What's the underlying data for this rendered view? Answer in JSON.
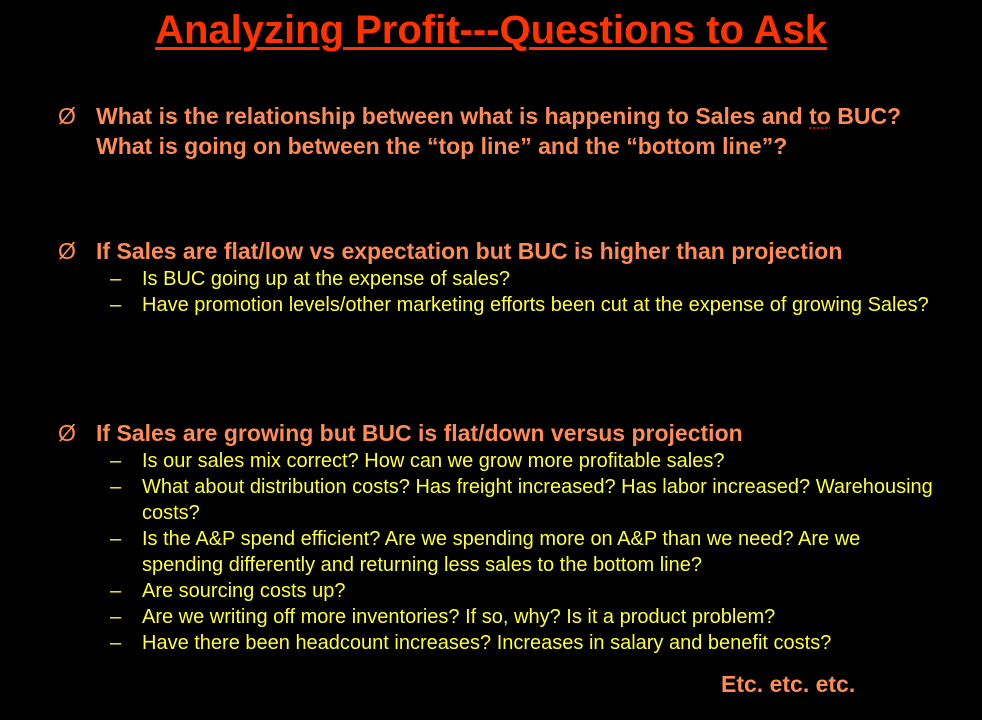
{
  "colors": {
    "background": "#000000",
    "title": "#ff3300",
    "bullet_text": "#ff8c55",
    "sub_text": "#ffff33"
  },
  "title": "Analyzing Profit---Questions to Ask",
  "bullets": [
    {
      "mark": "Ø",
      "text_before": "What is the relationship between what is happening to Sales and ",
      "text_flagged": "to",
      "text_after": " BUC?  What is going on between the “top line” and the “bottom line”?",
      "subitems": []
    },
    {
      "mark": "Ø",
      "text": "If Sales are flat/low vs expectation but BUC is higher than projection",
      "subitems": [
        "Is BUC going up at the expense of sales?",
        "Have promotion levels/other marketing efforts been cut at the expense of growing Sales?"
      ]
    },
    {
      "mark": "Ø",
      "text": "If Sales are growing but BUC is flat/down versus projection",
      "subitems": [
        "Is our sales mix correct?  How can we grow more profitable sales?",
        "What about distribution costs?  Has freight increased? Has labor increased?  Warehousing costs?",
        "Is the A&P spend efficient? Are we spending more on A&P than we need?  Are we spending differently and returning less sales to the bottom line?",
        "Are sourcing costs up?",
        "Are we writing off more inventories?  If so, why?  Is it a product problem?",
        "Have there been headcount increases? Increases in salary and benefit costs?"
      ]
    }
  ],
  "sub_mark": "–",
  "footer": "Etc. etc. etc."
}
